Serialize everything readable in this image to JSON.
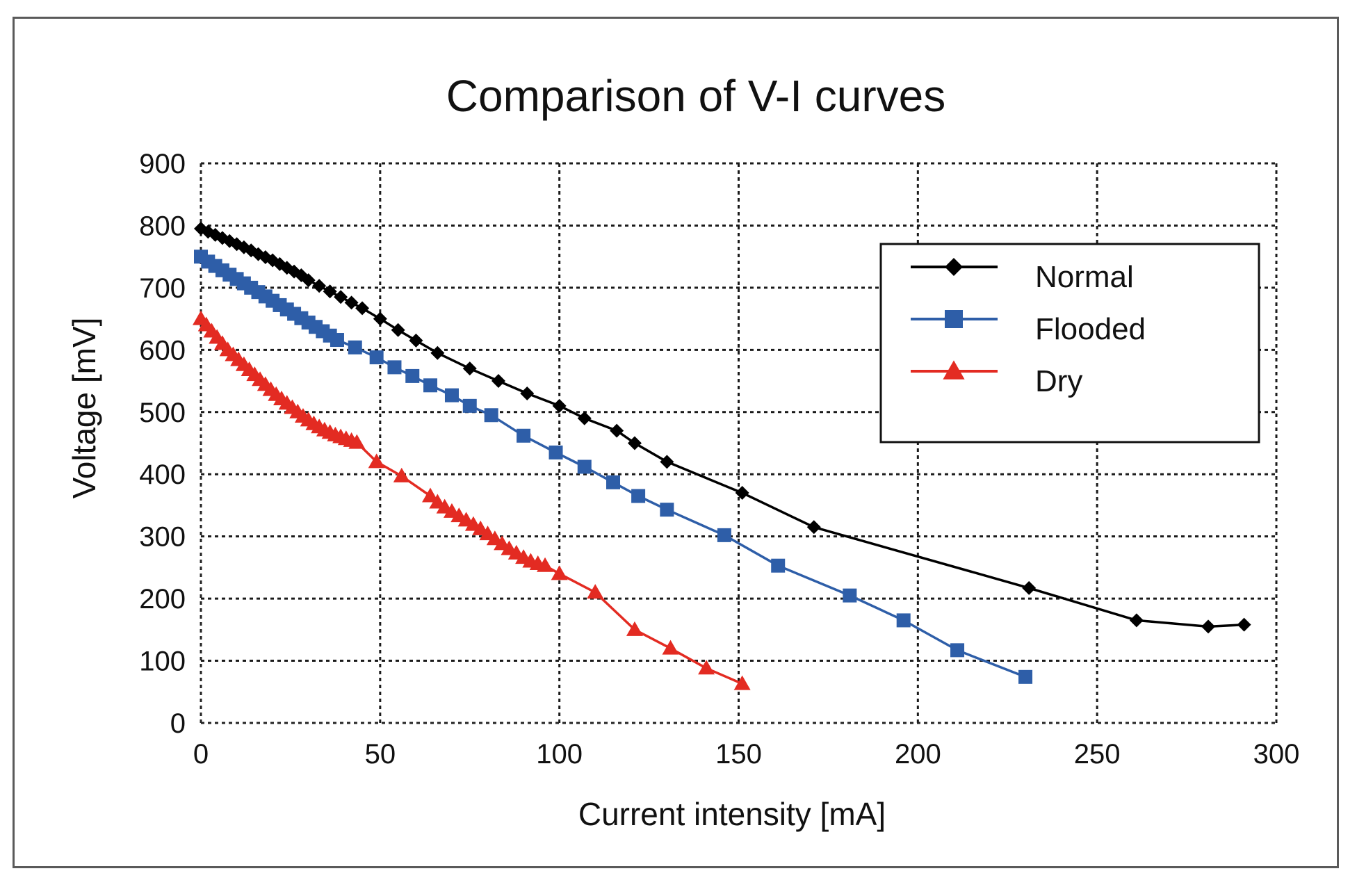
{
  "chart_data": {
    "type": "line",
    "title": "Comparison of V-I curves",
    "xlabel": "Current intensity [mA]",
    "ylabel": "Voltage [mV]",
    "xlim": [
      0,
      300
    ],
    "ylim": [
      0,
      900
    ],
    "xticks": [
      0,
      50,
      100,
      150,
      200,
      250,
      300
    ],
    "yticks": [
      0,
      100,
      200,
      300,
      400,
      500,
      600,
      700,
      800,
      900
    ],
    "grid": true,
    "legend_position": "top-right",
    "series": [
      {
        "name": "Normal",
        "color": "#000000",
        "marker": "diamond",
        "x": [
          0,
          2,
          4,
          6,
          8,
          10,
          12,
          14,
          16,
          18,
          20,
          22,
          24,
          26,
          28,
          30,
          33,
          36,
          39,
          42,
          45,
          50,
          55,
          60,
          66,
          75,
          83,
          91,
          100,
          107,
          116,
          121,
          130,
          151,
          171,
          231,
          261,
          281,
          291
        ],
        "y": [
          795,
          790,
          785,
          780,
          775,
          770,
          765,
          760,
          754,
          749,
          744,
          738,
          732,
          726,
          720,
          712,
          703,
          694,
          685,
          676,
          667,
          650,
          632,
          615,
          595,
          570,
          550,
          530,
          510,
          490,
          470,
          450,
          420,
          370,
          315,
          217,
          165,
          155,
          158
        ]
      },
      {
        "name": "Flooded",
        "color": "#2e5ea8",
        "marker": "square",
        "x": [
          0,
          2,
          4,
          6,
          8,
          10,
          12,
          14,
          16,
          18,
          20,
          22,
          24,
          26,
          28,
          30,
          32,
          34,
          36,
          38,
          43,
          49,
          54,
          59,
          64,
          70,
          75,
          81,
          90,
          99,
          107,
          115,
          122,
          130,
          146,
          161,
          181,
          196,
          211,
          230
        ],
        "y": [
          750,
          742,
          735,
          728,
          721,
          714,
          707,
          700,
          693,
          686,
          679,
          672,
          665,
          658,
          651,
          644,
          637,
          630,
          623,
          616,
          604,
          588,
          572,
          558,
          543,
          527,
          510,
          495,
          462,
          435,
          412,
          387,
          365,
          343,
          302,
          253,
          205,
          165,
          117,
          74
        ]
      },
      {
        "name": "Dry",
        "color": "#e32b22",
        "marker": "triangle",
        "x": [
          0,
          1.5,
          3,
          4.5,
          6,
          7.5,
          9,
          10.5,
          12,
          13.5,
          15,
          16.5,
          18,
          19.5,
          21,
          22.5,
          24,
          25.5,
          27,
          28.5,
          30,
          31.5,
          33,
          34.5,
          36,
          37.5,
          39,
          40.5,
          42,
          43.5,
          49,
          56,
          64,
          66,
          68,
          70,
          72,
          74,
          76,
          78,
          80,
          82,
          84,
          86,
          88,
          90,
          92,
          94,
          96,
          100,
          110,
          121,
          131,
          141,
          151
        ],
        "y": [
          650,
          640,
          630,
          620,
          610,
          600,
          592,
          584,
          576,
          568,
          560,
          552,
          544,
          536,
          528,
          521,
          514,
          507,
          500,
          493,
          487,
          481,
          476,
          471,
          467,
          463,
          460,
          457,
          454,
          451,
          420,
          397,
          365,
          355,
          347,
          340,
          333,
          326,
          319,
          312,
          304,
          296,
          288,
          280,
          273,
          266,
          260,
          256,
          253,
          240,
          210,
          150,
          120,
          88,
          63
        ]
      }
    ]
  }
}
